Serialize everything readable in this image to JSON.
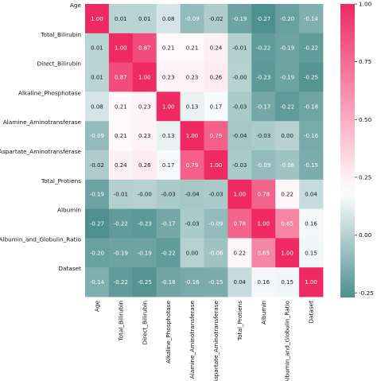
{
  "chart_data": {
    "type": "heatmap",
    "title": "",
    "labels": [
      "Age",
      "Total_Bilirubin",
      "Direct_Bilirubin",
      "Alkaline_Phosphotase",
      "Alamine_Aminotransferase",
      "Aspartate_Aminotransferase",
      "Total_Protiens",
      "Albumin",
      "Albumin_and_Globulin_Ratio",
      "Dataset"
    ],
    "values": [
      [
        "1.00",
        "0.01",
        "0.01",
        "0.08",
        "-0.09",
        "-0.02",
        "-0.19",
        "-0.27",
        "-0.20",
        "-0.14"
      ],
      [
        "0.01",
        "1.00",
        "0.87",
        "0.21",
        "0.21",
        "0.24",
        "-0.01",
        "-0.22",
        "-0.19",
        "-0.22"
      ],
      [
        "0.01",
        "0.87",
        "1.00",
        "0.23",
        "0.23",
        "0.26",
        "-0.00",
        "-0.23",
        "-0.19",
        "-0.25"
      ],
      [
        "0.08",
        "0.21",
        "0.23",
        "1.00",
        "0.13",
        "0.17",
        "-0.03",
        "-0.17",
        "-0.22",
        "-0.18"
      ],
      [
        "-0.09",
        "0.21",
        "0.23",
        "0.13",
        "1.00",
        "0.79",
        "-0.04",
        "-0.03",
        "0.00",
        "-0.16"
      ],
      [
        "-0.02",
        "0.24",
        "0.26",
        "0.17",
        "0.79",
        "1.00",
        "-0.03",
        "-0.09",
        "-0.06",
        "-0.15"
      ],
      [
        "-0.19",
        "-0.01",
        "-0.00",
        "-0.03",
        "-0.04",
        "-0.03",
        "1.00",
        "0.78",
        "0.22",
        "0.04"
      ],
      [
        "-0.27",
        "-0.22",
        "-0.23",
        "-0.17",
        "-0.03",
        "-0.09",
        "0.78",
        "1.00",
        "0.65",
        "0.16"
      ],
      [
        "-0.20",
        "-0.19",
        "-0.19",
        "-0.22",
        "0.00",
        "-0.06",
        "0.22",
        "0.65",
        "1.00",
        "0.15"
      ],
      [
        "-0.14",
        "-0.22",
        "-0.25",
        "-0.18",
        "-0.16",
        "-0.15",
        "0.04",
        "0.16",
        "0.15",
        "1.00"
      ]
    ],
    "colorbar": {
      "range": [
        -0.27,
        1.0
      ],
      "ticks": [
        "1.00",
        "0.75",
        "0.50",
        "0.25",
        "0.00",
        "-0.25"
      ],
      "colors": {
        "low": "#4e8f8f",
        "mid": "#ffffff",
        "high": "#ef2a63"
      }
    }
  }
}
